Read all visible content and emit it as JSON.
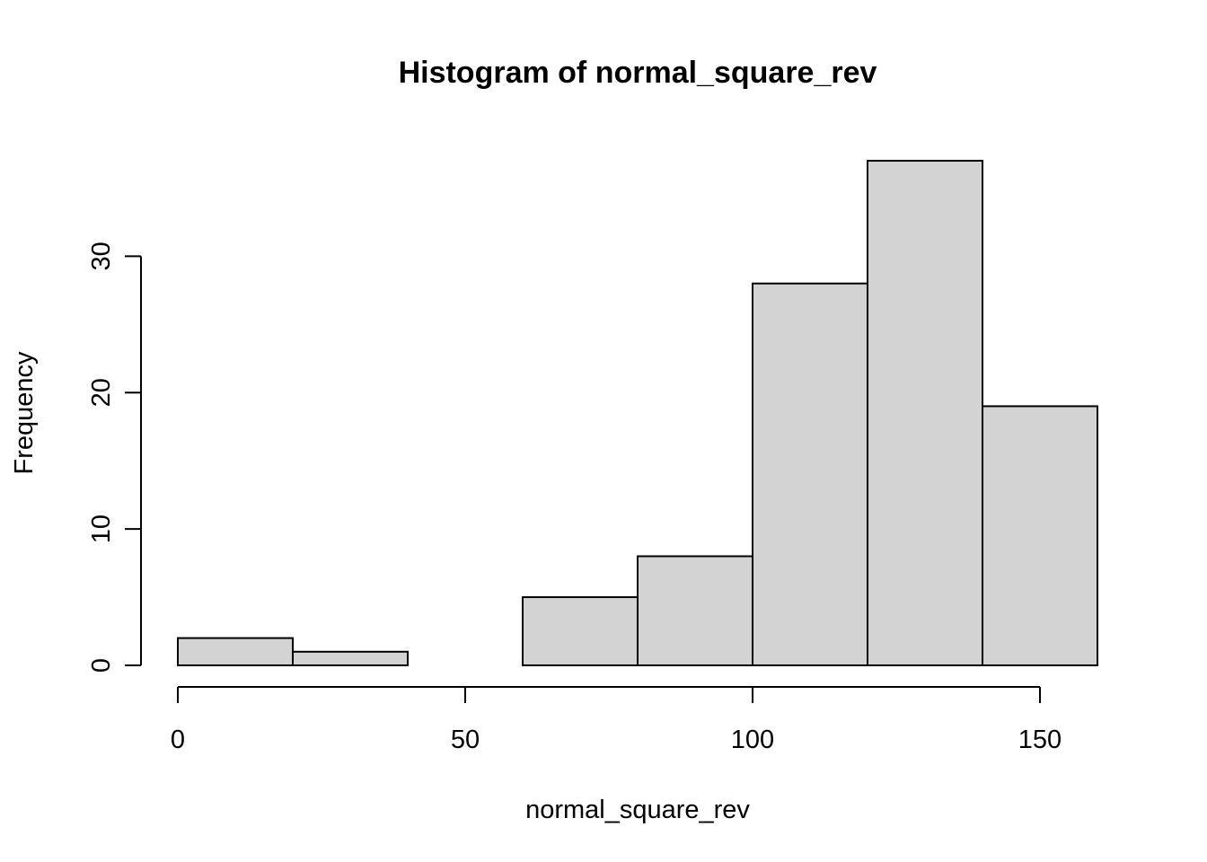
{
  "chart_data": {
    "type": "bar",
    "subtype": "histogram",
    "title": "Histogram of normal_square_rev",
    "xlabel": "normal_square_rev",
    "ylabel": "Frequency",
    "bins": [
      {
        "start": 0,
        "end": 20,
        "count": 2
      },
      {
        "start": 20,
        "end": 40,
        "count": 1
      },
      {
        "start": 40,
        "end": 60,
        "count": 0
      },
      {
        "start": 60,
        "end": 80,
        "count": 5
      },
      {
        "start": 80,
        "end": 100,
        "count": 8
      },
      {
        "start": 100,
        "end": 120,
        "count": 28
      },
      {
        "start": 120,
        "end": 140,
        "count": 37
      },
      {
        "start": 140,
        "end": 160,
        "count": 19
      }
    ],
    "xticks": [
      0,
      50,
      100,
      150
    ],
    "yticks": [
      0,
      10,
      20,
      30
    ],
    "xlim": [
      0,
      160
    ],
    "ylim": [
      0,
      37
    ],
    "grid": false,
    "legend": "none",
    "bar_color": "#d3d3d3",
    "edge_color": "#000000"
  }
}
